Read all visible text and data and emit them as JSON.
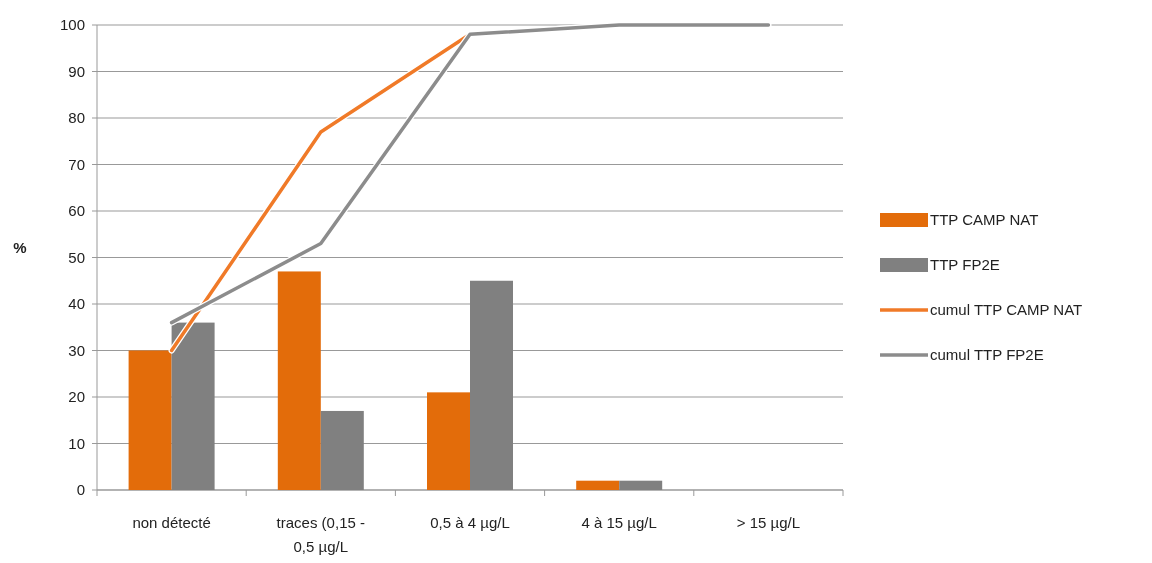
{
  "chart_data": {
    "type": "bar",
    "ylabel": "%",
    "categories": [
      "non détecté",
      "traces (0,15 - 0,5 µg/L",
      "0,5 à 4 µg/L",
      "4 à 15 µg/L",
      "> 15 µg/L"
    ],
    "series": [
      {
        "name": "TTP CAMP NAT",
        "color": "#e36c0a",
        "values": [
          30,
          47,
          21,
          2,
          0
        ]
      },
      {
        "name": "TTP FP2E",
        "color": "#808080",
        "values": [
          36,
          17,
          45,
          2,
          0
        ]
      },
      {
        "name": "cumul TTP CAMP NAT",
        "type": "line",
        "color": "#f07a28",
        "values": [
          30,
          77,
          98,
          100,
          100
        ]
      },
      {
        "name": "cumul TTP FP2E",
        "type": "line",
        "color": "#8c8c8c",
        "values": [
          36,
          53,
          98,
          100,
          100
        ]
      }
    ],
    "ylim": [
      0,
      100
    ],
    "yticks": [
      0,
      10,
      20,
      30,
      40,
      50,
      60,
      70,
      80,
      90,
      100
    ],
    "grid": "y",
    "legend": "right"
  }
}
